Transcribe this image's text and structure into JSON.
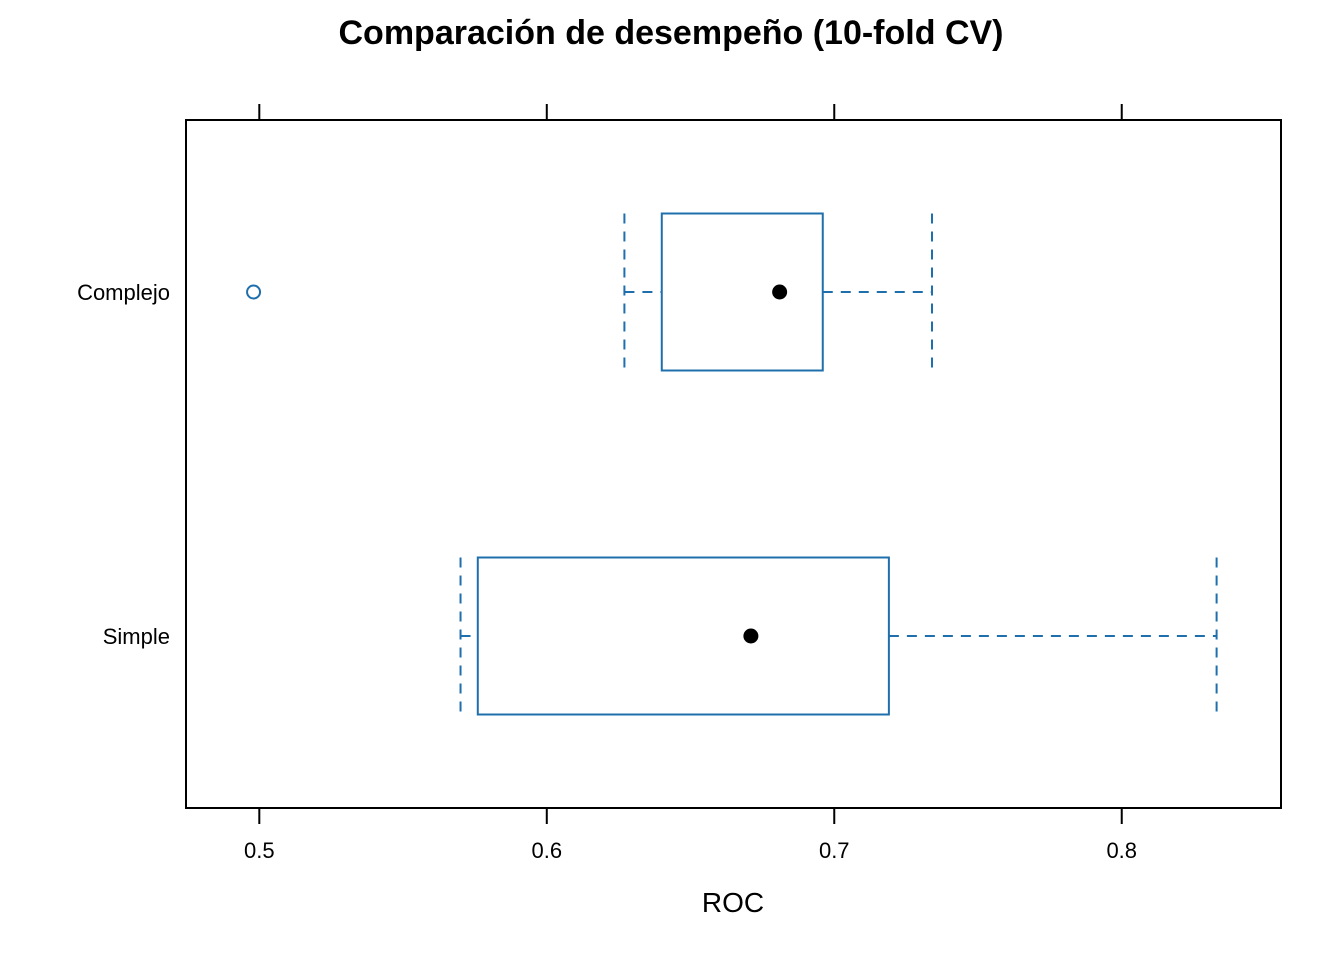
{
  "chart_data": {
    "type": "boxplot",
    "orientation": "horizontal",
    "title": "Comparación de desempeño (10-fold CV)",
    "xlabel": "ROC",
    "ylabel": "",
    "xlim": [
      0.4745,
      0.8554
    ],
    "x_ticks": [
      0.5,
      0.6,
      0.7,
      0.8
    ],
    "x_tick_labels": [
      "0.5",
      "0.6",
      "0.7",
      "0.8"
    ],
    "ticks_on_top": true,
    "ticks_on_bottom": true,
    "grid": false,
    "categories": [
      "Complejo",
      "Simple"
    ],
    "boxes": [
      {
        "name": "Complejo",
        "whisker_low": 0.627,
        "q1": 0.64,
        "median": 0.681,
        "q3": 0.696,
        "whisker_high": 0.734,
        "outliers": [
          0.498
        ]
      },
      {
        "name": "Simple",
        "whisker_low": 0.57,
        "q1": 0.576,
        "median": 0.671,
        "q3": 0.719,
        "whisker_high": 0.833,
        "outliers": []
      }
    ],
    "colors": {
      "box": "#1f6fad",
      "median_dot": "#000000",
      "frame": "#000000"
    }
  }
}
